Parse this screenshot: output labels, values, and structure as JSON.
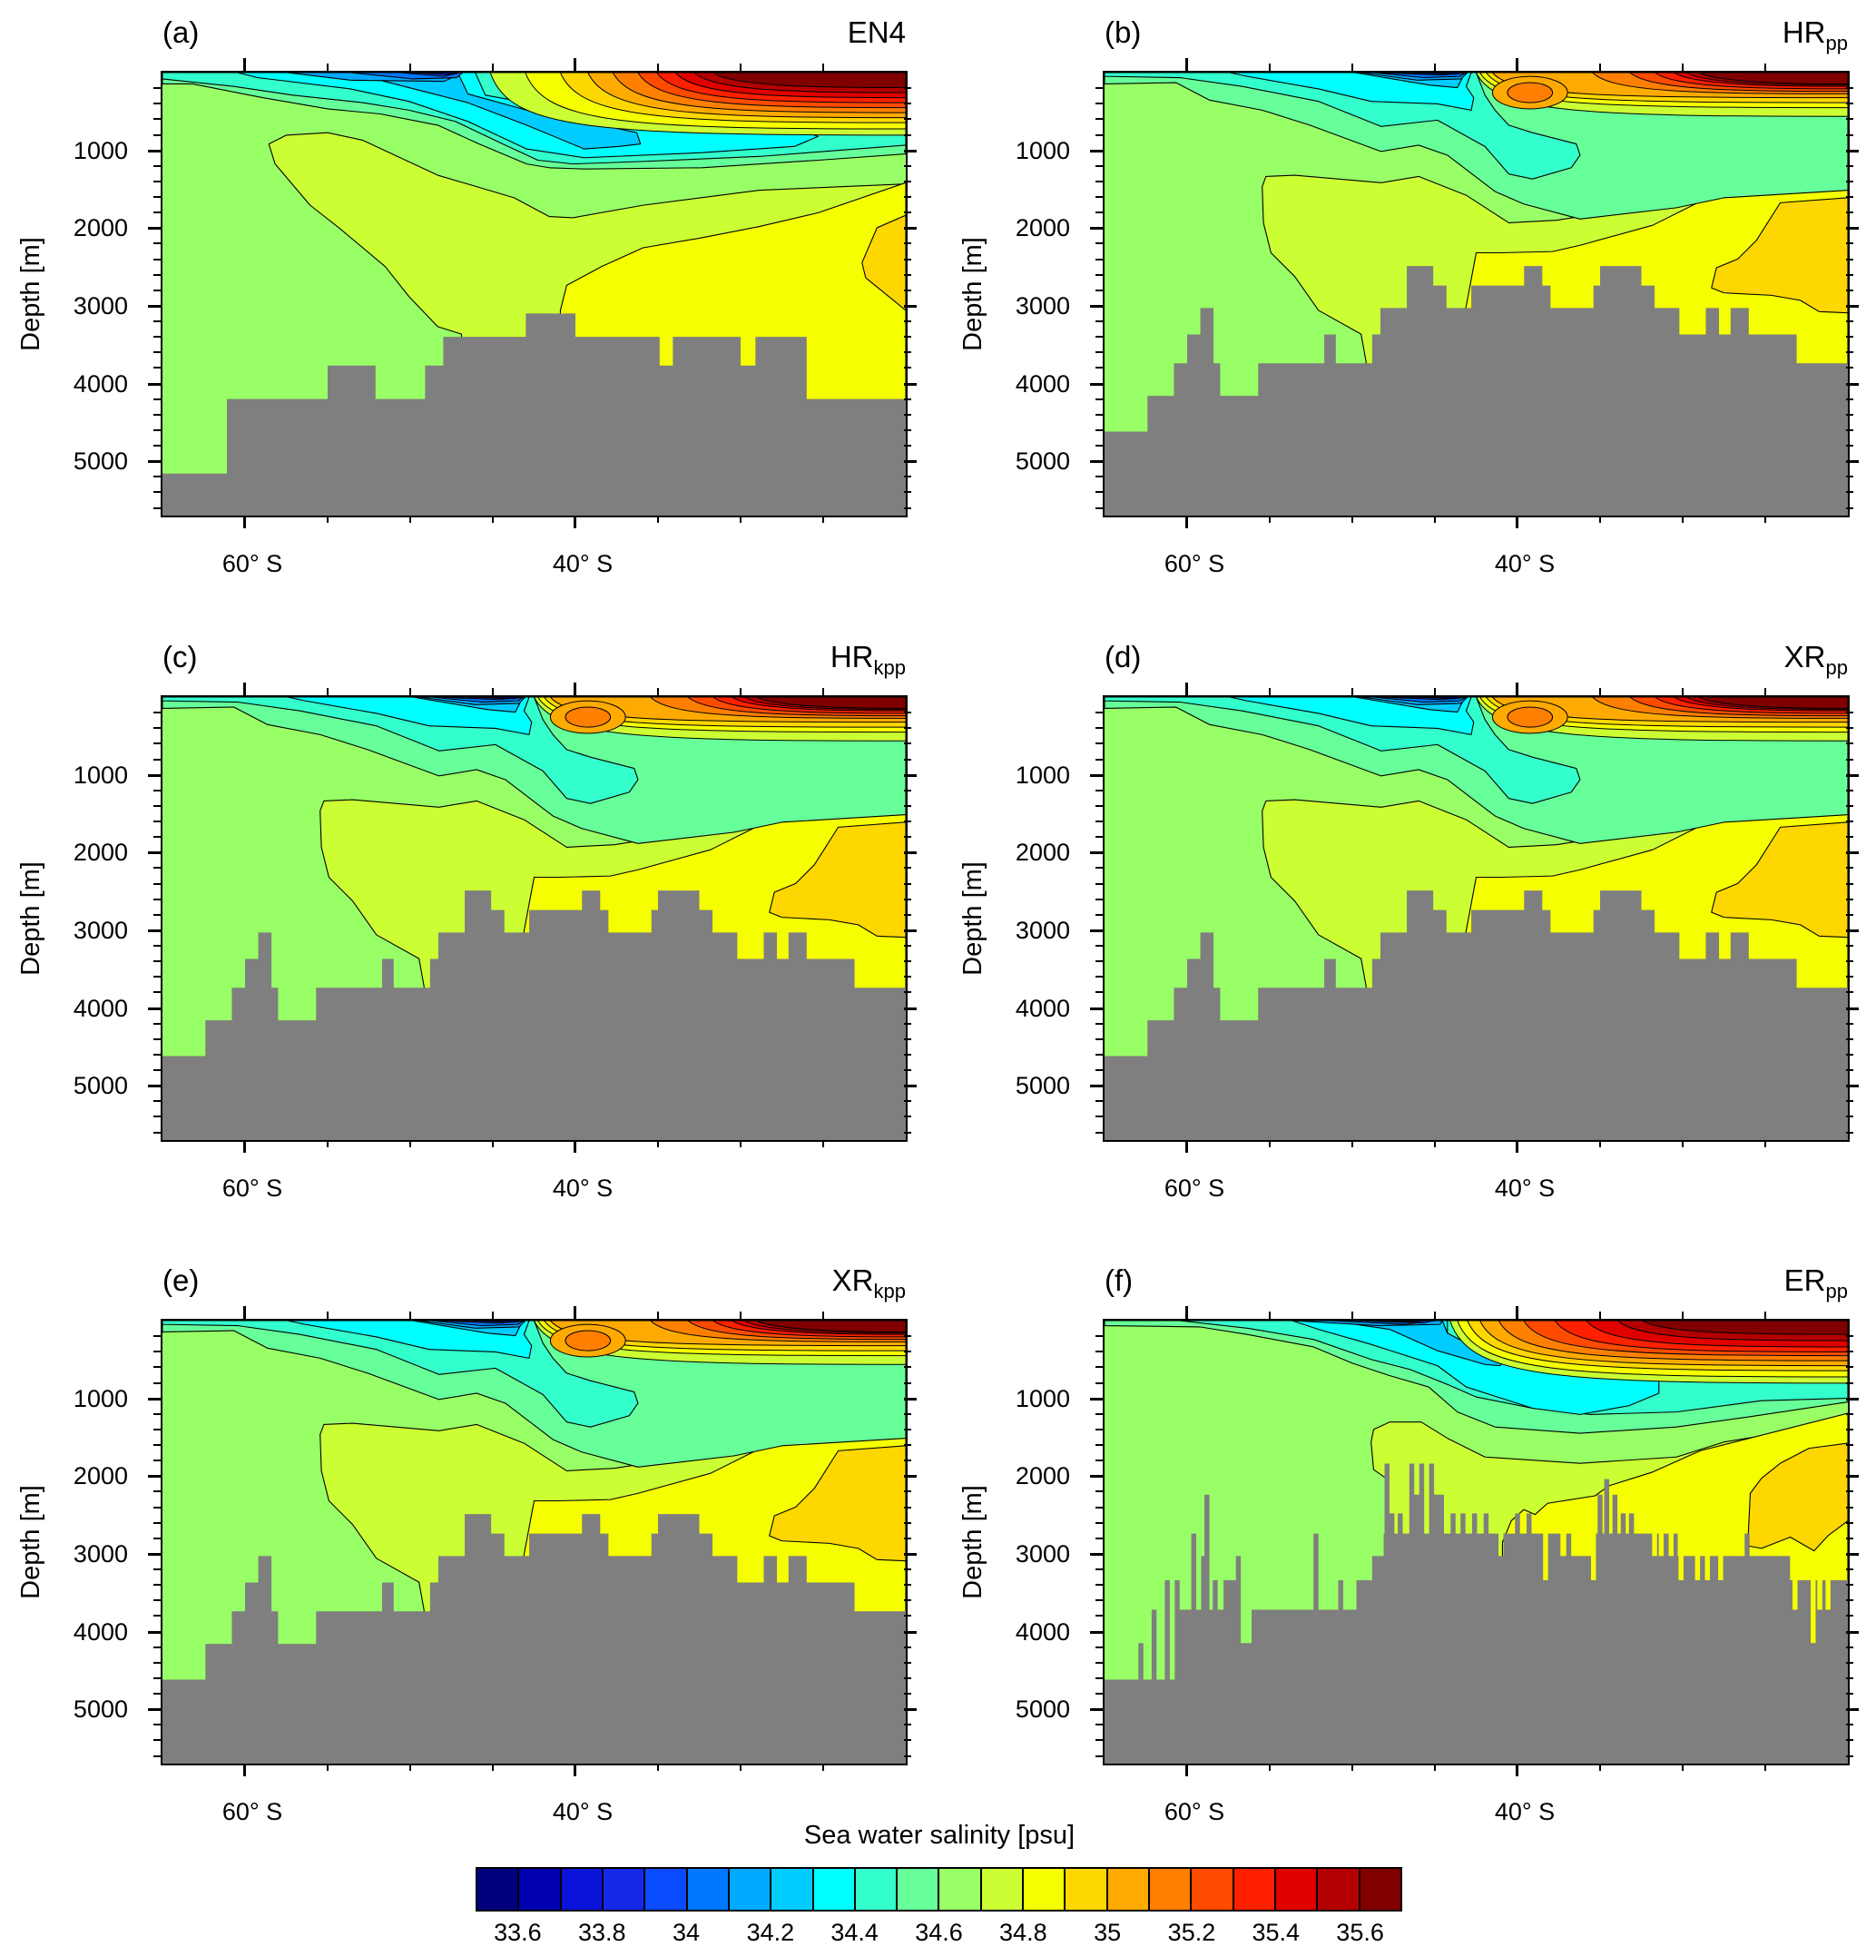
{
  "chart_data": {
    "type": "contour",
    "xlim": [
      -65,
      -20
    ],
    "ylim": [
      0,
      5700
    ],
    "y_reversed": true,
    "ylabel": "Depth [m]",
    "yticks": [
      1000,
      2000,
      3000,
      4000,
      5000
    ],
    "yticks_minor_step": 200,
    "xticks": [
      {
        "value": -60,
        "label": "60° S"
      },
      {
        "value": -40,
        "label": "40° S"
      }
    ],
    "xticks_minor": [
      -55,
      -50,
      -45,
      -35,
      -30,
      -25
    ],
    "land_color": "#7f7f7f",
    "colorbar": {
      "title": "Sea water salinity [psu]",
      "levels": [
        33.6,
        33.7,
        33.8,
        33.9,
        34.0,
        34.1,
        34.2,
        34.3,
        34.4,
        34.5,
        34.6,
        34.7,
        34.8,
        34.9,
        35.0,
        35.1,
        35.2,
        35.3,
        35.4,
        35.5,
        35.6
      ],
      "tick_labels": [
        "33.6",
        "33.8",
        "34",
        "34.2",
        "34.4",
        "34.6",
        "34.8",
        "35",
        "35.2",
        "35.4",
        "35.6"
      ],
      "colors": [
        "#00007f",
        "#0000b0",
        "#0a14d8",
        "#1428e6",
        "#0a4bff",
        "#0077ff",
        "#00aaff",
        "#00ccff",
        "#00ffff",
        "#33ffcc",
        "#66ff99",
        "#99ff66",
        "#ccff33",
        "#f5ff00",
        "#ffd700",
        "#ffaa00",
        "#ff7f00",
        "#ff4b00",
        "#ff2000",
        "#e00000",
        "#b40000",
        "#800000"
      ]
    },
    "panels": [
      {
        "label": "(a)",
        "title": "EN4",
        "title_sub": "",
        "bathymetry": [
          [
            -65,
            -61.1,
            5160
          ],
          [
            -61.1,
            -55,
            4200
          ],
          [
            -55,
            -52.1,
            3770
          ],
          [
            -52.1,
            -49.1,
            4200
          ],
          [
            -49.1,
            -48,
            3770
          ],
          [
            -48,
            -43,
            3400
          ],
          [
            -43,
            -40,
            3100
          ],
          [
            -40,
            -34.9,
            3400
          ],
          [
            -34.9,
            -34.1,
            3770
          ],
          [
            -34.1,
            -30,
            3400
          ],
          [
            -30,
            -29.1,
            3770
          ],
          [
            -29.1,
            -26,
            3400
          ],
          [
            -26,
            -20,
            4200
          ]
        ],
        "bathymetry_spikes": []
      },
      {
        "label": "(b)",
        "title": "HR",
        "title_sub": "pp",
        "bathymetry": [
          [
            -65,
            -62.4,
            4620
          ],
          [
            -62.4,
            -60.8,
            4160
          ],
          [
            -60.8,
            -60,
            3740
          ],
          [
            -60,
            -59.2,
            3370
          ],
          [
            -59.2,
            -58.4,
            3030
          ],
          [
            -58.4,
            -58,
            3740
          ],
          [
            -58,
            -55.7,
            4160
          ],
          [
            -55.7,
            -51.7,
            3740
          ],
          [
            -51.7,
            -51,
            3370
          ],
          [
            -51,
            -48.8,
            3740
          ],
          [
            -48.8,
            -48.3,
            3370
          ],
          [
            -48.3,
            -46.7,
            3030
          ],
          [
            -46.7,
            -45.1,
            2490
          ],
          [
            -45.1,
            -44.3,
            2740
          ],
          [
            -44.3,
            -42.8,
            3030
          ],
          [
            -42.8,
            -39.6,
            2740
          ],
          [
            -39.6,
            -38.5,
            2490
          ],
          [
            -38.5,
            -38,
            2740
          ],
          [
            -38,
            -35.4,
            3030
          ],
          [
            -35.4,
            -35,
            2740
          ],
          [
            -35,
            -32.5,
            2490
          ],
          [
            -32.5,
            -31.7,
            2740
          ],
          [
            -31.7,
            -30.2,
            3030
          ],
          [
            -30.2,
            -28.6,
            3370
          ],
          [
            -28.6,
            -27.8,
            3030
          ],
          [
            -27.8,
            -27.1,
            3370
          ],
          [
            -27.1,
            -26,
            3030
          ],
          [
            -26,
            -23.1,
            3370
          ],
          [
            -23.1,
            -20,
            3740
          ]
        ],
        "bathymetry_spikes": []
      },
      {
        "label": "(c)",
        "title": "HR",
        "title_sub": "kpp",
        "bathymetry": [
          [
            -65,
            -62.4,
            4620
          ],
          [
            -62.4,
            -60.8,
            4160
          ],
          [
            -60.8,
            -60,
            3740
          ],
          [
            -60,
            -59.2,
            3370
          ],
          [
            -59.2,
            -58.4,
            3030
          ],
          [
            -58.4,
            -58,
            3740
          ],
          [
            -58,
            -55.7,
            4160
          ],
          [
            -55.7,
            -51.7,
            3740
          ],
          [
            -51.7,
            -51,
            3370
          ],
          [
            -51,
            -48.8,
            3740
          ],
          [
            -48.8,
            -48.3,
            3370
          ],
          [
            -48.3,
            -46.7,
            3030
          ],
          [
            -46.7,
            -45.1,
            2490
          ],
          [
            -45.1,
            -44.3,
            2740
          ],
          [
            -44.3,
            -42.8,
            3030
          ],
          [
            -42.8,
            -39.6,
            2740
          ],
          [
            -39.6,
            -38.5,
            2490
          ],
          [
            -38.5,
            -38,
            2740
          ],
          [
            -38,
            -35.4,
            3030
          ],
          [
            -35.4,
            -35,
            2740
          ],
          [
            -35,
            -32.5,
            2490
          ],
          [
            -32.5,
            -31.7,
            2740
          ],
          [
            -31.7,
            -30.2,
            3030
          ],
          [
            -30.2,
            -28.6,
            3370
          ],
          [
            -28.6,
            -27.8,
            3030
          ],
          [
            -27.8,
            -27.1,
            3370
          ],
          [
            -27.1,
            -26,
            3030
          ],
          [
            -26,
            -23.1,
            3370
          ],
          [
            -23.1,
            -20,
            3740
          ]
        ],
        "bathymetry_spikes": []
      },
      {
        "label": "(d)",
        "title": "XR",
        "title_sub": "pp",
        "bathymetry": [
          [
            -65,
            -62.4,
            4620
          ],
          [
            -62.4,
            -60.8,
            4160
          ],
          [
            -60.8,
            -60,
            3740
          ],
          [
            -60,
            -59.2,
            3370
          ],
          [
            -59.2,
            -58.4,
            3030
          ],
          [
            -58.4,
            -58,
            3740
          ],
          [
            -58,
            -55.7,
            4160
          ],
          [
            -55.7,
            -51.7,
            3740
          ],
          [
            -51.7,
            -51,
            3370
          ],
          [
            -51,
            -48.8,
            3740
          ],
          [
            -48.8,
            -48.3,
            3370
          ],
          [
            -48.3,
            -46.7,
            3030
          ],
          [
            -46.7,
            -45.1,
            2490
          ],
          [
            -45.1,
            -44.3,
            2740
          ],
          [
            -44.3,
            -42.8,
            3030
          ],
          [
            -42.8,
            -39.6,
            2740
          ],
          [
            -39.6,
            -38.5,
            2490
          ],
          [
            -38.5,
            -38,
            2740
          ],
          [
            -38,
            -35.4,
            3030
          ],
          [
            -35.4,
            -35,
            2740
          ],
          [
            -35,
            -32.5,
            2490
          ],
          [
            -32.5,
            -31.7,
            2740
          ],
          [
            -31.7,
            -30.2,
            3030
          ],
          [
            -30.2,
            -28.6,
            3370
          ],
          [
            -28.6,
            -27.8,
            3030
          ],
          [
            -27.8,
            -27.1,
            3370
          ],
          [
            -27.1,
            -26,
            3030
          ],
          [
            -26,
            -23.1,
            3370
          ],
          [
            -23.1,
            -20,
            3740
          ]
        ],
        "bathymetry_spikes": []
      },
      {
        "label": "(e)",
        "title": "XR",
        "title_sub": "kpp",
        "bathymetry": [
          [
            -65,
            -62.4,
            4620
          ],
          [
            -62.4,
            -60.8,
            4160
          ],
          [
            -60.8,
            -60,
            3740
          ],
          [
            -60,
            -59.2,
            3370
          ],
          [
            -59.2,
            -58.4,
            3030
          ],
          [
            -58.4,
            -58,
            3740
          ],
          [
            -58,
            -55.7,
            4160
          ],
          [
            -55.7,
            -51.7,
            3740
          ],
          [
            -51.7,
            -51,
            3370
          ],
          [
            -51,
            -48.8,
            3740
          ],
          [
            -48.8,
            -48.3,
            3370
          ],
          [
            -48.3,
            -46.7,
            3030
          ],
          [
            -46.7,
            -45.1,
            2490
          ],
          [
            -45.1,
            -44.3,
            2740
          ],
          [
            -44.3,
            -42.8,
            3030
          ],
          [
            -42.8,
            -39.6,
            2740
          ],
          [
            -39.6,
            -38.5,
            2490
          ],
          [
            -38.5,
            -38,
            2740
          ],
          [
            -38,
            -35.4,
            3030
          ],
          [
            -35.4,
            -35,
            2740
          ],
          [
            -35,
            -32.5,
            2490
          ],
          [
            -32.5,
            -31.7,
            2740
          ],
          [
            -31.7,
            -30.2,
            3030
          ],
          [
            -30.2,
            -28.6,
            3370
          ],
          [
            -28.6,
            -27.8,
            3030
          ],
          [
            -27.8,
            -27.1,
            3370
          ],
          [
            -27.1,
            -26,
            3030
          ],
          [
            -26,
            -23.1,
            3370
          ],
          [
            -23.1,
            -20,
            3740
          ]
        ],
        "bathymetry_spikes": []
      },
      {
        "label": "(f)",
        "title": "ER",
        "title_sub": "pp",
        "bathymetry": [
          [
            -65,
            -60.7,
            4620
          ],
          [
            -60.7,
            -57.8,
            3720
          ],
          [
            -57.8,
            -56.8,
            3340
          ],
          [
            -56.8,
            -56.1,
            4150
          ],
          [
            -56.1,
            -49.5,
            3720
          ],
          [
            -49.5,
            -48.8,
            3340
          ],
          [
            -48.8,
            -48.1,
            3030
          ],
          [
            -48.1,
            -37.4,
            2740
          ],
          [
            -37.4,
            -35.4,
            3030
          ],
          [
            -35.4,
            -30.3,
            2740
          ],
          [
            -30.3,
            -23.5,
            3030
          ],
          [
            -23.5,
            -20,
            3340
          ]
        ],
        "bathymetry_spikes": [
          [
            -62.8,
            4150
          ],
          [
            -62.0,
            3720
          ],
          [
            -61.2,
            3340
          ],
          [
            -60.6,
            3340
          ],
          [
            -59.6,
            2740
          ],
          [
            -59.0,
            3030
          ],
          [
            -58.8,
            2240
          ],
          [
            -58.3,
            3340
          ],
          [
            -56.9,
            3030
          ],
          [
            -52.2,
            2740
          ],
          [
            -50.7,
            3340
          ],
          [
            -49.6,
            3340
          ],
          [
            -47.9,
            1840
          ],
          [
            -47.6,
            2480
          ],
          [
            -47.1,
            2480
          ],
          [
            -46.4,
            1840
          ],
          [
            -46.1,
            2240
          ],
          [
            -45.8,
            1840
          ],
          [
            -45.2,
            1840
          ],
          [
            -44.9,
            2240
          ],
          [
            -44.6,
            2240
          ],
          [
            -43.9,
            2480
          ],
          [
            -43.3,
            2480
          ],
          [
            -42.6,
            2480
          ],
          [
            -41.9,
            2480
          ],
          [
            -41.0,
            3030
          ],
          [
            -40.0,
            2480
          ],
          [
            -39.3,
            2480
          ],
          [
            -38.3,
            3340
          ],
          [
            -36.9,
            2740
          ],
          [
            -35.4,
            3340
          ],
          [
            -35.0,
            2240
          ],
          [
            -34.6,
            2040
          ],
          [
            -34.1,
            2240
          ],
          [
            -33.6,
            2480
          ],
          [
            -33.1,
            2480
          ],
          [
            -31.7,
            3030
          ],
          [
            -31.3,
            3030
          ],
          [
            -30.7,
            3030
          ],
          [
            -30.1,
            3340
          ],
          [
            -29.1,
            3340
          ],
          [
            -28.5,
            3340
          ],
          [
            -27.7,
            3340
          ],
          [
            -26.1,
            2740
          ],
          [
            -25.4,
            3030
          ],
          [
            -23.2,
            3720
          ],
          [
            -22.1,
            4150
          ],
          [
            -21.7,
            3720
          ],
          [
            -21.2,
            3720
          ]
        ]
      }
    ]
  }
}
